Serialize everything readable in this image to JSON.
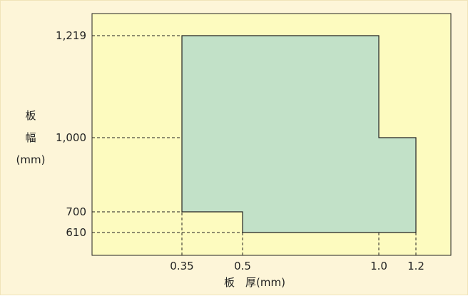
{
  "chart_data": {
    "type": "area",
    "title": "",
    "xlabel": "板　厚(mm)",
    "ylabel": [
      "板",
      "幅",
      "(mm)"
    ],
    "x_ticks": [
      {
        "value": 0.35,
        "label": "0.35"
      },
      {
        "value": 0.5,
        "label": "0.5"
      },
      {
        "value": 1.0,
        "label": "1.0"
      },
      {
        "value": 1.2,
        "label": "1.2"
      }
    ],
    "y_ticks": [
      {
        "value": 610,
        "label": "610"
      },
      {
        "value": 700,
        "label": "700"
      },
      {
        "value": 1000,
        "label": "1,000"
      },
      {
        "value": 1219,
        "label": "1,219"
      }
    ],
    "region": {
      "name": "",
      "points": [
        [
          0.35,
          700
        ],
        [
          0.35,
          1219
        ],
        [
          1.0,
          1219
        ],
        [
          1.0,
          1000
        ],
        [
          1.2,
          1000
        ],
        [
          1.2,
          610
        ],
        [
          0.5,
          610
        ],
        [
          0.5,
          700
        ]
      ]
    },
    "grid": false,
    "colors": {
      "background": "#fdf5d8",
      "plot_background": "#fdfbbf",
      "region_fill": "#c2e1c8",
      "line": "#222222"
    }
  }
}
